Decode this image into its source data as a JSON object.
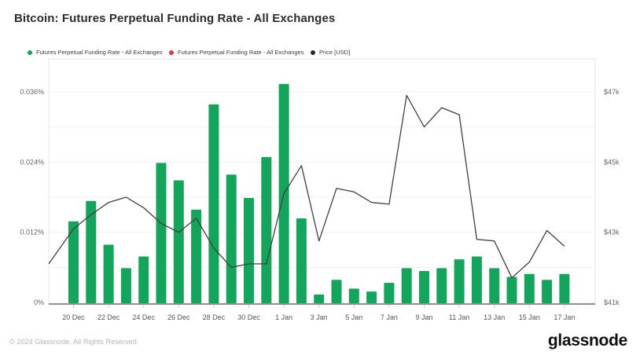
{
  "page": {
    "title": "Bitcoin: Futures Perpetual Funding Rate - All Exchanges"
  },
  "legend": {
    "items": [
      {
        "label": "Futures Perpetual Funding Rate - All Exchanges",
        "color": "#14a45c"
      },
      {
        "label": "Futures Perpetual Funding Rate - All Exchanges",
        "color": "#e03a2f"
      },
      {
        "label": "Price [USD]",
        "color": "#262626"
      }
    ]
  },
  "chart_data": {
    "type": "bar",
    "subtype": "combo-bar-line-dual-axis",
    "title": "Bitcoin: Futures Perpetual Funding Rate - All Exchanges",
    "grid": true,
    "legend_position": "top-left",
    "categories": [
      "20 Dec",
      "21 Dec",
      "22 Dec",
      "23 Dec",
      "24 Dec",
      "25 Dec",
      "26 Dec",
      "27 Dec",
      "28 Dec",
      "29 Dec",
      "30 Dec",
      "31 Dec",
      "1 Jan",
      "2 Jan",
      "3 Jan",
      "4 Jan",
      "5 Jan",
      "6 Jan",
      "7 Jan",
      "8 Jan",
      "9 Jan",
      "10 Jan",
      "11 Jan",
      "12 Jan",
      "13 Jan",
      "14 Jan",
      "15 Jan",
      "16 Jan",
      "17 Jan"
    ],
    "x_axis_tick_labels": [
      "20 Dec",
      "22 Dec",
      "24 Dec",
      "26 Dec",
      "28 Dec",
      "30 Dec",
      "1 Jan",
      "3 Jan",
      "5 Jan",
      "7 Jan",
      "9 Jan",
      "11 Jan",
      "13 Jan",
      "15 Jan",
      "17 Jan"
    ],
    "series": [
      {
        "name": "Futures Perpetual Funding Rate - All Exchanges",
        "type": "bar",
        "axis": "left",
        "unit": "%",
        "color": "#14a45c",
        "values": [
          0.014,
          0.0175,
          0.01,
          0.006,
          0.008,
          0.024,
          0.021,
          0.016,
          0.034,
          0.022,
          0.018,
          0.025,
          0.0375,
          0.0145,
          0.0015,
          0.004,
          0.0025,
          0.002,
          0.0035,
          0.006,
          0.0055,
          0.006,
          0.0075,
          0.008,
          0.006,
          0.0045,
          0.005,
          0.004,
          0.005
        ]
      },
      {
        "name": "Price [USD]",
        "type": "line",
        "axis": "right",
        "unit": "USD thousands",
        "color": "#404040",
        "lead_in_value": 42.1,
        "values": [
          43.1,
          43.5,
          43.85,
          44.0,
          43.7,
          43.25,
          43.0,
          43.4,
          42.55,
          42.0,
          42.1,
          42.1,
          44.1,
          44.9,
          42.75,
          44.25,
          44.15,
          43.85,
          43.8,
          46.9,
          46.0,
          46.55,
          46.35,
          42.8,
          42.75,
          41.7,
          42.15,
          43.05,
          42.6
        ]
      }
    ],
    "left_axis": {
      "unit": "%",
      "tick_labels": [
        "0%",
        "0.012%",
        "0.024%",
        "0.036%"
      ],
      "tick_values": [
        0,
        0.012,
        0.024,
        0.036
      ],
      "grid_step": 0.006,
      "range": [
        0,
        0.0417
      ]
    },
    "right_axis": {
      "unit": "USD",
      "tick_labels": [
        "$41k",
        "$43k",
        "$45k",
        "$47k"
      ],
      "tick_values": [
        41,
        43,
        45,
        47
      ],
      "range": [
        41,
        47.95
      ]
    }
  },
  "style": {
    "bar_color": "#14a45c",
    "line_color": "#404040",
    "grid_color": "#f1f1f1",
    "border_color": "#e4e4e4",
    "axis_line_color": "#909090",
    "tick_color": "#c9c9c9",
    "label_color": "#666666"
  },
  "footer": {
    "copyright": "© 2024 Glassnode. All Rights Reserved.",
    "logo": "glassnode"
  }
}
